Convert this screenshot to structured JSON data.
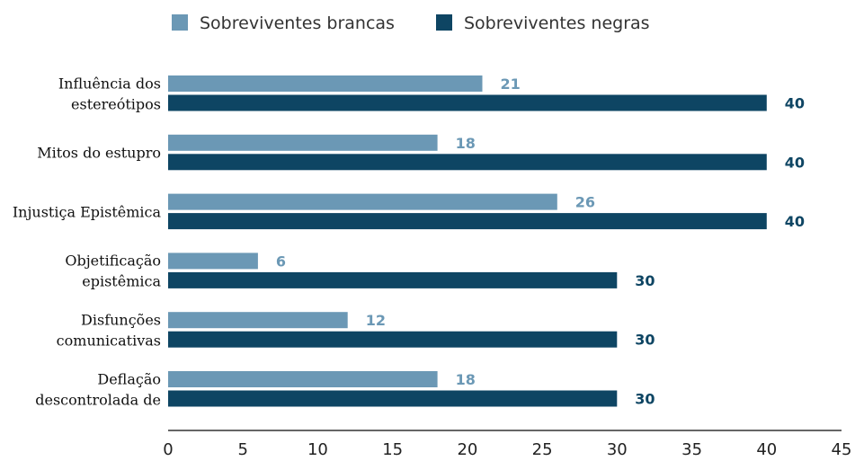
{
  "chart_data": {
    "type": "bar",
    "orientation": "horizontal",
    "categories": [
      [
        "Influência dos",
        "estereótipos"
      ],
      [
        "Mitos do estupro"
      ],
      [
        "Injustiça Epistêmica"
      ],
      [
        "Objetificação",
        "epistêmica"
      ],
      [
        "Disfunções",
        "comunicativas"
      ],
      [
        "Deflação",
        "descontrolada de"
      ]
    ],
    "series": [
      {
        "name": "Sobreviventes brancas",
        "color": "#6b98b5",
        "values": [
          21,
          18,
          26,
          6,
          12,
          18
        ]
      },
      {
        "name": "Sobreviventes negras",
        "color": "#0e4563",
        "values": [
          40,
          40,
          40,
          30,
          30,
          30
        ]
      }
    ],
    "xlim": [
      0,
      45
    ],
    "xticks": [
      0,
      5,
      10,
      15,
      20,
      25,
      30,
      35,
      40,
      45
    ],
    "title": "",
    "xlabel": "",
    "ylabel": "",
    "grid": false,
    "legend": "top-center",
    "data_labels": true
  }
}
